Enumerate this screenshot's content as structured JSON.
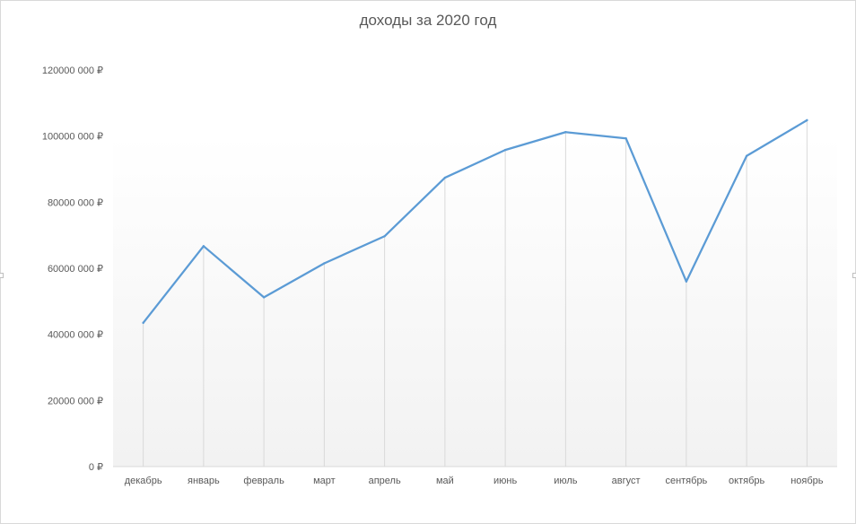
{
  "chart_data": {
    "type": "line",
    "title": "доходы за 2020 год",
    "categories": [
      "декабрь",
      "январь",
      "февраль",
      "март",
      "апрель",
      "май",
      "июнь",
      "июль",
      "август",
      "сентябрь",
      "октябрь",
      "ноябрь"
    ],
    "series": [
      {
        "values": [
          43500000,
          66700000,
          51200000,
          61500000,
          69700000,
          87400000,
          95800000,
          101200000,
          99300000,
          56000000,
          94000000,
          104800000
        ],
        "color": "#5b9bd5"
      }
    ],
    "ylim": [
      0,
      120000000
    ],
    "yticks": [
      0,
      20000000,
      40000000,
      60000000,
      80000000,
      100000000,
      120000000
    ],
    "ytick_labels": [
      "0 ₽",
      "20000 000 ₽",
      "40000 000 ₽",
      "60000 000 ₽",
      "80000 000 ₽",
      "100000 000 ₽",
      "120000 000 ₽"
    ],
    "grid": false,
    "drop_lines": true,
    "legend": "none"
  }
}
